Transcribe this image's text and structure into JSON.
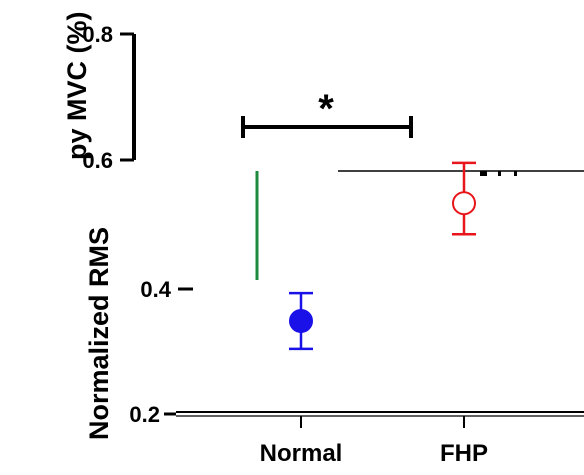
{
  "chart_data": {
    "type": "scatter",
    "ylabel_upper": "py MVC (%)",
    "ylabel_lower": "Normalized RMS",
    "categories": [
      "Normal",
      "FHP"
    ],
    "yticks": [
      "0.2",
      "0.4",
      "0.6",
      "0.8"
    ],
    "ylim": [
      0.2,
      0.8
    ],
    "significance": "*",
    "series": [
      {
        "category": "Normal",
        "mean": 0.35,
        "err_low": 0.305,
        "err_high": 0.395,
        "color": "#1a10e8",
        "fill": "filled"
      },
      {
        "category": "FHP",
        "mean": 0.54,
        "err_low": 0.49,
        "err_high": 0.605,
        "color": "#e8151a",
        "fill": "open"
      }
    ],
    "colors": {
      "normal": "#1a10e8",
      "fhp": "#e8151a",
      "green_line": "#1e8a3c"
    }
  }
}
